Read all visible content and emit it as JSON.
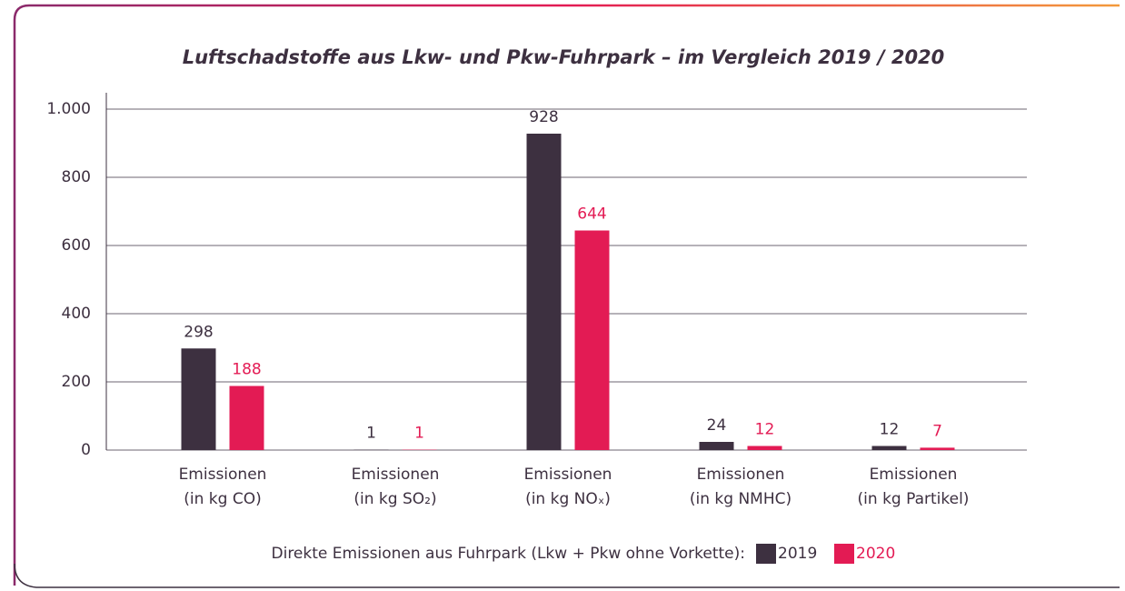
{
  "chart_data": {
    "type": "bar",
    "title": "Luftschadstoffe aus Lkw- und Pkw-Fuhrpark – im Vergleich 2019 / 2020",
    "categories": [
      [
        "Emissionen",
        "(in kg CO)"
      ],
      [
        "Emissionen",
        "(in kg SO₂)"
      ],
      [
        "Emissionen",
        "(in kg NOₓ)"
      ],
      [
        "Emissionen",
        "(in kg NMHC)"
      ],
      [
        "Emissionen",
        "(in kg Partikel)"
      ]
    ],
    "series": [
      {
        "name": "2019",
        "color": "#3d3040",
        "values": [
          298,
          1,
          928,
          24,
          12
        ]
      },
      {
        "name": "2020",
        "color": "#e31b54",
        "values": [
          188,
          1,
          644,
          12,
          7
        ]
      }
    ],
    "legend_title": "Direkte Emissionen aus Fuhrpark (Lkw + Pkw ohne Vorkette):",
    "ylim": [
      0,
      1000
    ],
    "yticks": [
      0,
      200,
      400,
      600,
      800,
      {
        "value": 1000,
        "label": "1.000"
      }
    ],
    "grid": true
  }
}
